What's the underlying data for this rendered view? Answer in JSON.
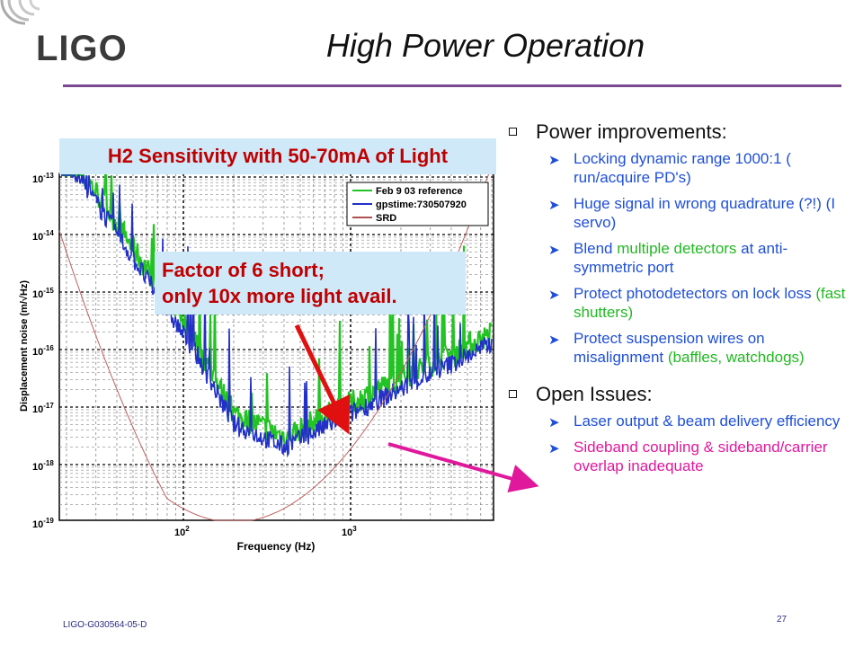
{
  "header": {
    "logo_text": "LIGO",
    "title": "High Power Operation"
  },
  "plot": {
    "banner": "H2 Sensitivity with 50-70mA of Light",
    "xlabel": "Frequency (Hz)",
    "ylabel": "Displacement noise (m/√Hz)",
    "xticks": [
      {
        "label": "10",
        "exp": "2",
        "value": 100
      },
      {
        "label": "10",
        "exp": "3",
        "value": 1000
      }
    ],
    "yticks": [
      {
        "label": "10",
        "exp": "-13"
      },
      {
        "label": "10",
        "exp": "-14"
      },
      {
        "label": "10",
        "exp": "-15"
      },
      {
        "label": "10",
        "exp": "-16"
      },
      {
        "label": "10",
        "exp": "-17"
      },
      {
        "label": "10",
        "exp": "-18"
      },
      {
        "label": "10",
        "exp": "-19"
      }
    ],
    "legend": [
      {
        "name": "Feb 9 03 reference",
        "color": "#22c322"
      },
      {
        "name": "gpstime:730507920",
        "color": "#2230c8"
      },
      {
        "name": "SRD",
        "color": "#b05050"
      }
    ]
  },
  "callout": {
    "line1": "Factor of 6 short;",
    "line2": "only 10x more light avail."
  },
  "bullets": {
    "power": {
      "heading": "Power improvements:",
      "items": [
        {
          "text": "Locking dynamic range 1000:1 ( run/acquire PD's)"
        },
        {
          "text": "Huge signal in wrong quadrature (?!) (I servo)"
        },
        {
          "pre": "Blend ",
          "hl": "multiple detectors",
          "post": " at anti-symmetric port"
        },
        {
          "pre": "Protect photodetectors on lock loss ",
          "hl": "(fast shutters)",
          "post": ""
        },
        {
          "pre": "Protect suspension wires on misalignment ",
          "hl": "(baffles, watchdogs)",
          "post": ""
        }
      ]
    },
    "issues": {
      "heading": "Open Issues:",
      "items": [
        {
          "text": "Laser output & beam delivery efficiency"
        },
        {
          "text": "Sideband coupling & sideband/carrier overlap inadequate"
        }
      ]
    }
  },
  "footer": {
    "doc_id": "LIGO-G030564-05-D",
    "page": "27"
  },
  "colors": {
    "title_rule": "#7a4a90",
    "banner_bg": "#cfe9f9",
    "red_text": "#c00000",
    "blue_text": "#1f4fd8",
    "green_text": "#22b822",
    "magenta_text": "#e0189c"
  }
}
